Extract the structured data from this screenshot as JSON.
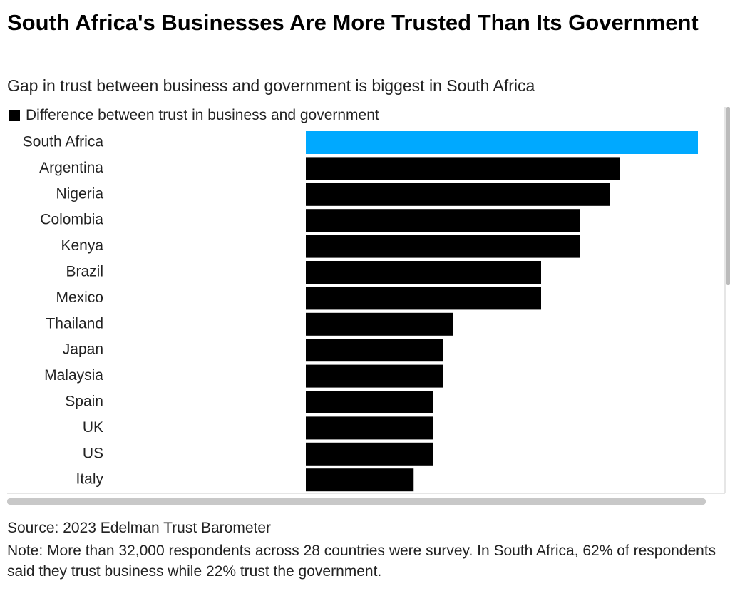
{
  "chart_data": {
    "type": "bar",
    "orientation": "horizontal",
    "title": "South Africa's Businesses Are More Trusted Than Its Government",
    "subtitle": "Gap in trust between business and government is biggest in South Africa",
    "categories": [
      "South Africa",
      "Argentina",
      "Nigeria",
      "Colombia",
      "Kenya",
      "Brazil",
      "Mexico",
      "Thailand",
      "Japan",
      "Malaysia",
      "Spain",
      "UK",
      "US",
      "Italy"
    ],
    "series": [
      {
        "name": "Difference between trust in business and government",
        "color": "#000000",
        "values": [
          40,
          32,
          31,
          28,
          28,
          24,
          24,
          15,
          14,
          14,
          13,
          13,
          13,
          11
        ]
      }
    ],
    "colors": [
      "#00a9ff",
      "#000000",
      "#000000",
      "#000000",
      "#000000",
      "#000000",
      "#000000",
      "#000000",
      "#000000",
      "#000000",
      "#000000",
      "#000000",
      "#000000",
      "#000000"
    ],
    "source": "Source: 2023 Edelman Trust Barometer",
    "note": "Note: More than 32,000 respondents across 28 countries were survey. In South Africa, 62% of respondents said they trust business while 22% trust the government."
  }
}
